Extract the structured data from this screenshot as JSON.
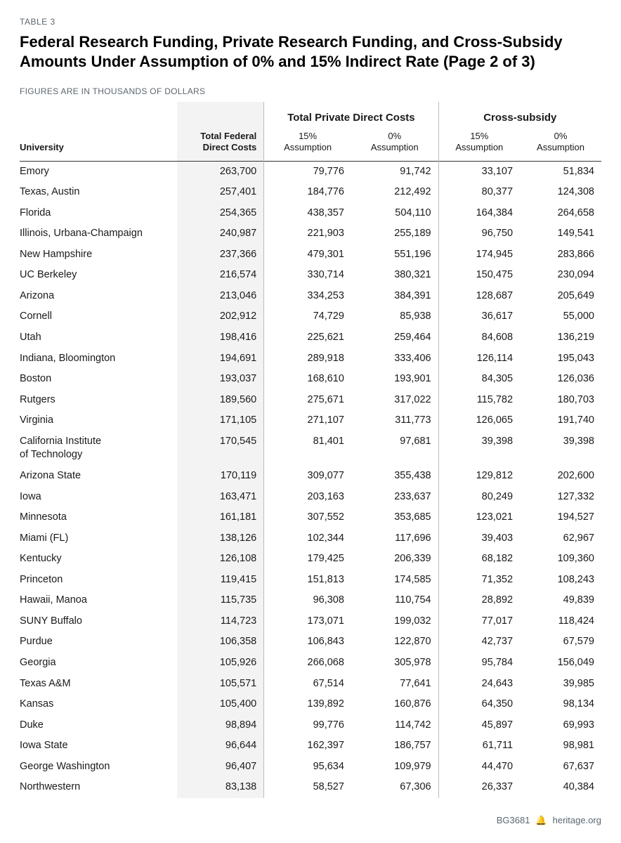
{
  "table_label": "TABLE 3",
  "title": "Federal Research Funding, Private Research Funding, and Cross-Subsidy Amounts Under Assumption of 0% and 15% Indirect Rate (Page 2 of 3)",
  "subnote": "FIGURES ARE IN THOUSANDS OF DOLLARS",
  "columns": {
    "university": "University",
    "federal": "Total Federal\nDirect Costs",
    "private_group": "Total Private Direct Costs",
    "cross_group": "Cross-subsidy",
    "assump15": "15%\nAssumption",
    "assump0": "0%\nAssumption"
  },
  "colors": {
    "text": "#1a1a1a",
    "muted": "#5b6770",
    "shade": "#f3f3f3",
    "sep": "#b8bcc0",
    "rule": "#333333",
    "bg": "#ffffff"
  },
  "rows": [
    {
      "u": "Emory",
      "f": "263,700",
      "p15": "79,776",
      "p0": "91,742",
      "s15": "33,107",
      "s0": "51,834"
    },
    {
      "u": "Texas, Austin",
      "f": "257,401",
      "p15": "184,776",
      "p0": "212,492",
      "s15": "80,377",
      "s0": "124,308"
    },
    {
      "u": "Florida",
      "f": "254,365",
      "p15": "438,357",
      "p0": "504,110",
      "s15": "164,384",
      "s0": "264,658"
    },
    {
      "u": "Illinois, Urbana-Champaign",
      "f": "240,987",
      "p15": "221,903",
      "p0": "255,189",
      "s15": "96,750",
      "s0": "149,541"
    },
    {
      "u": "New Hampshire",
      "f": "237,366",
      "p15": "479,301",
      "p0": "551,196",
      "s15": "174,945",
      "s0": "283,866"
    },
    {
      "u": "UC Berkeley",
      "f": "216,574",
      "p15": "330,714",
      "p0": "380,321",
      "s15": "150,475",
      "s0": "230,094"
    },
    {
      "u": "Arizona",
      "f": "213,046",
      "p15": "334,253",
      "p0": "384,391",
      "s15": "128,687",
      "s0": "205,649"
    },
    {
      "u": "Cornell",
      "f": "202,912",
      "p15": "74,729",
      "p0": "85,938",
      "s15": "36,617",
      "s0": "55,000"
    },
    {
      "u": "Utah",
      "f": "198,416",
      "p15": "225,621",
      "p0": "259,464",
      "s15": "84,608",
      "s0": "136,219"
    },
    {
      "u": "Indiana, Bloomington",
      "f": "194,691",
      "p15": "289,918",
      "p0": "333,406",
      "s15": "126,114",
      "s0": "195,043"
    },
    {
      "u": "Boston",
      "f": "193,037",
      "p15": "168,610",
      "p0": "193,901",
      "s15": "84,305",
      "s0": "126,036"
    },
    {
      "u": "Rutgers",
      "f": "189,560",
      "p15": "275,671",
      "p0": "317,022",
      "s15": "115,782",
      "s0": "180,703"
    },
    {
      "u": "Virginia",
      "f": "171,105",
      "p15": "271,107",
      "p0": "311,773",
      "s15": "126,065",
      "s0": "191,740"
    },
    {
      "u": "California Institute\nof Technology",
      "f": "170,545",
      "p15": "81,401",
      "p0": "97,681",
      "s15": "39,398",
      "s0": "39,398"
    },
    {
      "u": "Arizona State",
      "f": "170,119",
      "p15": "309,077",
      "p0": "355,438",
      "s15": "129,812",
      "s0": "202,600"
    },
    {
      "u": "Iowa",
      "f": "163,471",
      "p15": "203,163",
      "p0": "233,637",
      "s15": "80,249",
      "s0": "127,332"
    },
    {
      "u": "Minnesota",
      "f": "161,181",
      "p15": "307,552",
      "p0": "353,685",
      "s15": "123,021",
      "s0": "194,527"
    },
    {
      "u": "Miami (FL)",
      "f": "138,126",
      "p15": "102,344",
      "p0": "117,696",
      "s15": "39,403",
      "s0": "62,967"
    },
    {
      "u": "Kentucky",
      "f": "126,108",
      "p15": "179,425",
      "p0": "206,339",
      "s15": "68,182",
      "s0": "109,360"
    },
    {
      "u": "Princeton",
      "f": "119,415",
      "p15": "151,813",
      "p0": "174,585",
      "s15": "71,352",
      "s0": "108,243"
    },
    {
      "u": "Hawaii, Manoa",
      "f": "115,735",
      "p15": "96,308",
      "p0": "110,754",
      "s15": "28,892",
      "s0": "49,839"
    },
    {
      "u": "SUNY Buffalo",
      "f": "114,723",
      "p15": "173,071",
      "p0": "199,032",
      "s15": "77,017",
      "s0": "118,424"
    },
    {
      "u": "Purdue",
      "f": "106,358",
      "p15": "106,843",
      "p0": "122,870",
      "s15": "42,737",
      "s0": "67,579"
    },
    {
      "u": "Georgia",
      "f": "105,926",
      "p15": "266,068",
      "p0": "305,978",
      "s15": "95,784",
      "s0": "156,049"
    },
    {
      "u": "Texas A&M",
      "f": "105,571",
      "p15": "67,514",
      "p0": "77,641",
      "s15": "24,643",
      "s0": "39,985"
    },
    {
      "u": "Kansas",
      "f": "105,400",
      "p15": "139,892",
      "p0": "160,876",
      "s15": "64,350",
      "s0": "98,134"
    },
    {
      "u": "Duke",
      "f": "98,894",
      "p15": "99,776",
      "p0": "114,742",
      "s15": "45,897",
      "s0": "69,993"
    },
    {
      "u": "Iowa State",
      "f": "96,644",
      "p15": "162,397",
      "p0": "186,757",
      "s15": "61,711",
      "s0": "98,981"
    },
    {
      "u": "George Washington",
      "f": "96,407",
      "p15": "95,634",
      "p0": "109,979",
      "s15": "44,470",
      "s0": "67,637"
    },
    {
      "u": "Northwestern",
      "f": "83,138",
      "p15": "58,527",
      "p0": "67,306",
      "s15": "26,337",
      "s0": "40,384"
    }
  ],
  "footer": {
    "code": "BG3681",
    "site": "heritage.org"
  }
}
